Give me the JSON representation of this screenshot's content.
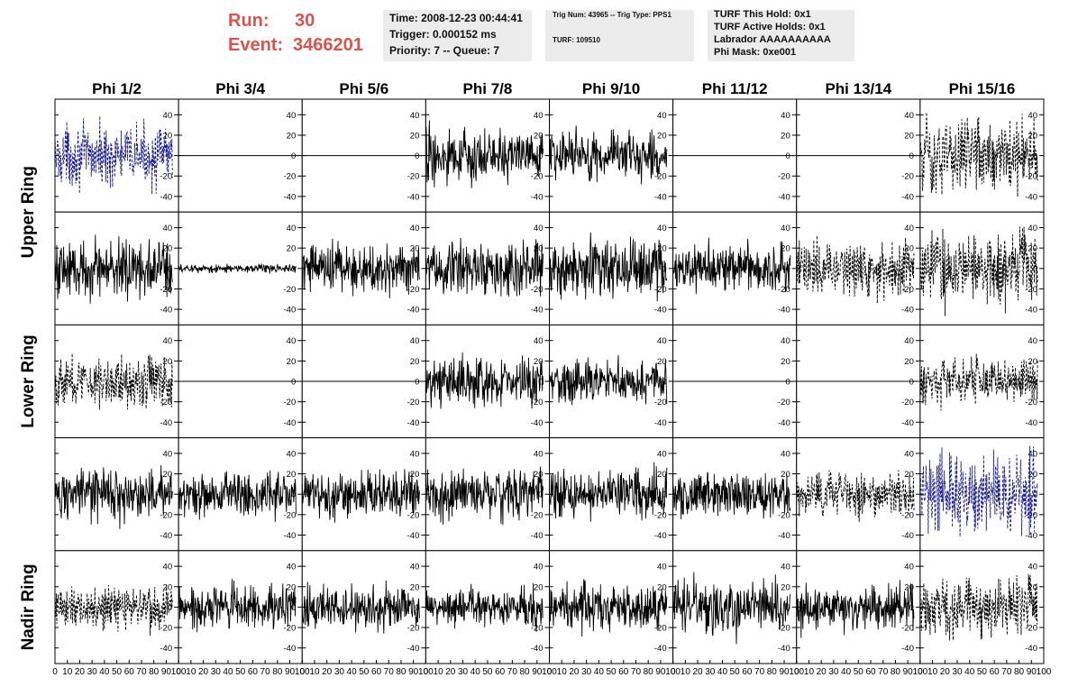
{
  "header": {
    "run_label": "Run:",
    "run_value": "30",
    "event_label": "Event:",
    "event_value": "3466201",
    "time": "Time: 2008-12-23 00:44:41",
    "trigger": "Trigger: 0.000152 ms",
    "priority": "Priority: 7 -- Queue: 7",
    "trig_num": "Trig Num: 43965 -- Trig Type: PPS1",
    "turf": "TURF: 109510",
    "turf_hold": "TURF This Hold: 0x1",
    "turf_active": "TURF Active Holds: 0x1",
    "labrador": "Labrador AAAAAAAAAA",
    "phi_mask": "Phi Mask: 0xe001"
  },
  "colors": {
    "header_red": "#d9534f",
    "solid_trace": "#000000",
    "dashed_trace": "#000000",
    "blue_trace": "#1a1a8c",
    "info_bg": "#ececec"
  },
  "chart_data": {
    "type": "line",
    "columns": [
      "Phi 1/2",
      "Phi 3/4",
      "Phi 5/6",
      "Phi 7/8",
      "Phi 9/10",
      "Phi 11/12",
      "Phi 13/14",
      "Phi 15/16"
    ],
    "ring_labels": [
      "Upper Ring",
      "Lower Ring",
      "Nadir Ring"
    ],
    "rows": 5,
    "xlim": [
      0,
      100
    ],
    "ylim": [
      -50,
      50
    ],
    "x_ticks": [
      0,
      10,
      20,
      30,
      40,
      50,
      60,
      70,
      80,
      90,
      100
    ],
    "y_ticks": [
      -40,
      -20,
      0,
      20,
      40
    ],
    "samples": 260,
    "trace_x_max": 95,
    "panels": [
      [
        {
          "style": "dashed-blue",
          "amp": 14
        },
        {
          "style": "flat",
          "amp": 0
        },
        {
          "style": "flat",
          "amp": 0
        },
        {
          "style": "solid",
          "amp": 13
        },
        {
          "style": "solid",
          "amp": 12
        },
        {
          "style": "flat",
          "amp": 0
        },
        {
          "style": "flat",
          "amp": 0
        },
        {
          "style": "dashed",
          "amp": 18
        }
      ],
      [
        {
          "style": "solid",
          "amp": 14
        },
        {
          "style": "solid",
          "amp": 2
        },
        {
          "style": "solid",
          "amp": 12
        },
        {
          "style": "solid",
          "amp": 13
        },
        {
          "style": "solid",
          "amp": 14
        },
        {
          "style": "solid",
          "amp": 11
        },
        {
          "style": "dashed",
          "amp": 13
        },
        {
          "style": "dashed",
          "amp": 17
        }
      ],
      [
        {
          "style": "dashed",
          "amp": 12
        },
        {
          "style": "flat",
          "amp": 0
        },
        {
          "style": "flat",
          "amp": 0
        },
        {
          "style": "solid",
          "amp": 11
        },
        {
          "style": "solid",
          "amp": 10
        },
        {
          "style": "flat",
          "amp": 0
        },
        {
          "style": "flat",
          "amp": 0
        },
        {
          "style": "dashed",
          "amp": 11
        }
      ],
      [
        {
          "style": "solid",
          "amp": 12
        },
        {
          "style": "solid",
          "amp": 11
        },
        {
          "style": "solid",
          "amp": 11
        },
        {
          "style": "solid",
          "amp": 12
        },
        {
          "style": "solid",
          "amp": 11
        },
        {
          "style": "solid",
          "amp": 10
        },
        {
          "style": "dashed",
          "amp": 10
        },
        {
          "style": "dashed-blue",
          "amp": 18
        }
      ],
      [
        {
          "style": "dashed",
          "amp": 11
        },
        {
          "style": "solid",
          "amp": 10
        },
        {
          "style": "solid",
          "amp": 10
        },
        {
          "style": "solid",
          "amp": 9
        },
        {
          "style": "solid",
          "amp": 11
        },
        {
          "style": "solid",
          "amp": 13
        },
        {
          "style": "solid",
          "amp": 11
        },
        {
          "style": "dashed",
          "amp": 14
        }
      ]
    ]
  }
}
